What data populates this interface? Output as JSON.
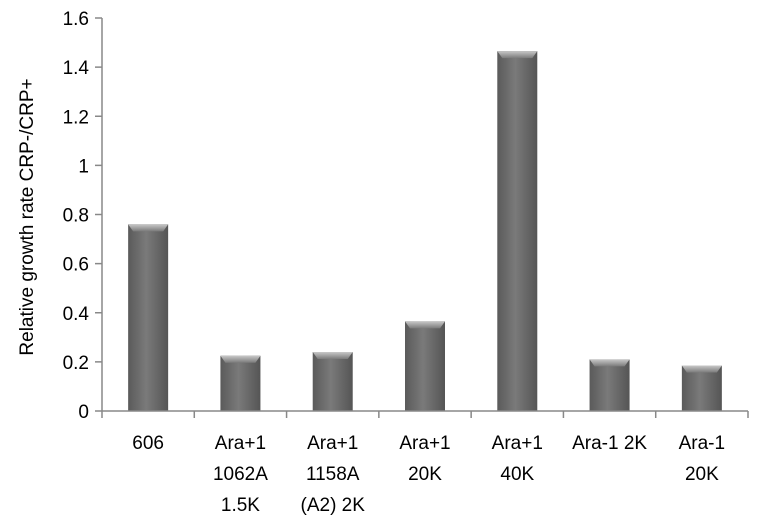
{
  "chart_data": {
    "type": "bar",
    "title": "",
    "xlabel": "",
    "ylabel": "Relative growth rate CRP-/CRP+",
    "categories": [
      [
        "606"
      ],
      [
        "Ara+1",
        "1062A",
        "1.5K"
      ],
      [
        "Ara+1",
        "1158A",
        "(A2) 2K"
      ],
      [
        "Ara+1",
        "20K"
      ],
      [
        "Ara+1",
        "40K"
      ],
      [
        "Ara-1 2K"
      ],
      [
        "Ara-1",
        "20K"
      ]
    ],
    "values": [
      0.76,
      0.225,
      0.24,
      0.365,
      1.465,
      0.21,
      0.185
    ],
    "ylim": [
      0,
      1.6
    ],
    "yticks": [
      0,
      0.2,
      0.4,
      0.6,
      0.8,
      1,
      1.2,
      1.4,
      1.6
    ],
    "ytick_labels": [
      "0",
      "0.2",
      "0.4",
      "0.6",
      "0.8",
      "1",
      "1.2",
      "1.4",
      "1.6"
    ],
    "grid": false,
    "legend": "none",
    "colors": {
      "bar": "#6f6f6f",
      "bar_light": "#9a9a9a",
      "bar_dark": "#555555",
      "axis": "#888888"
    }
  }
}
